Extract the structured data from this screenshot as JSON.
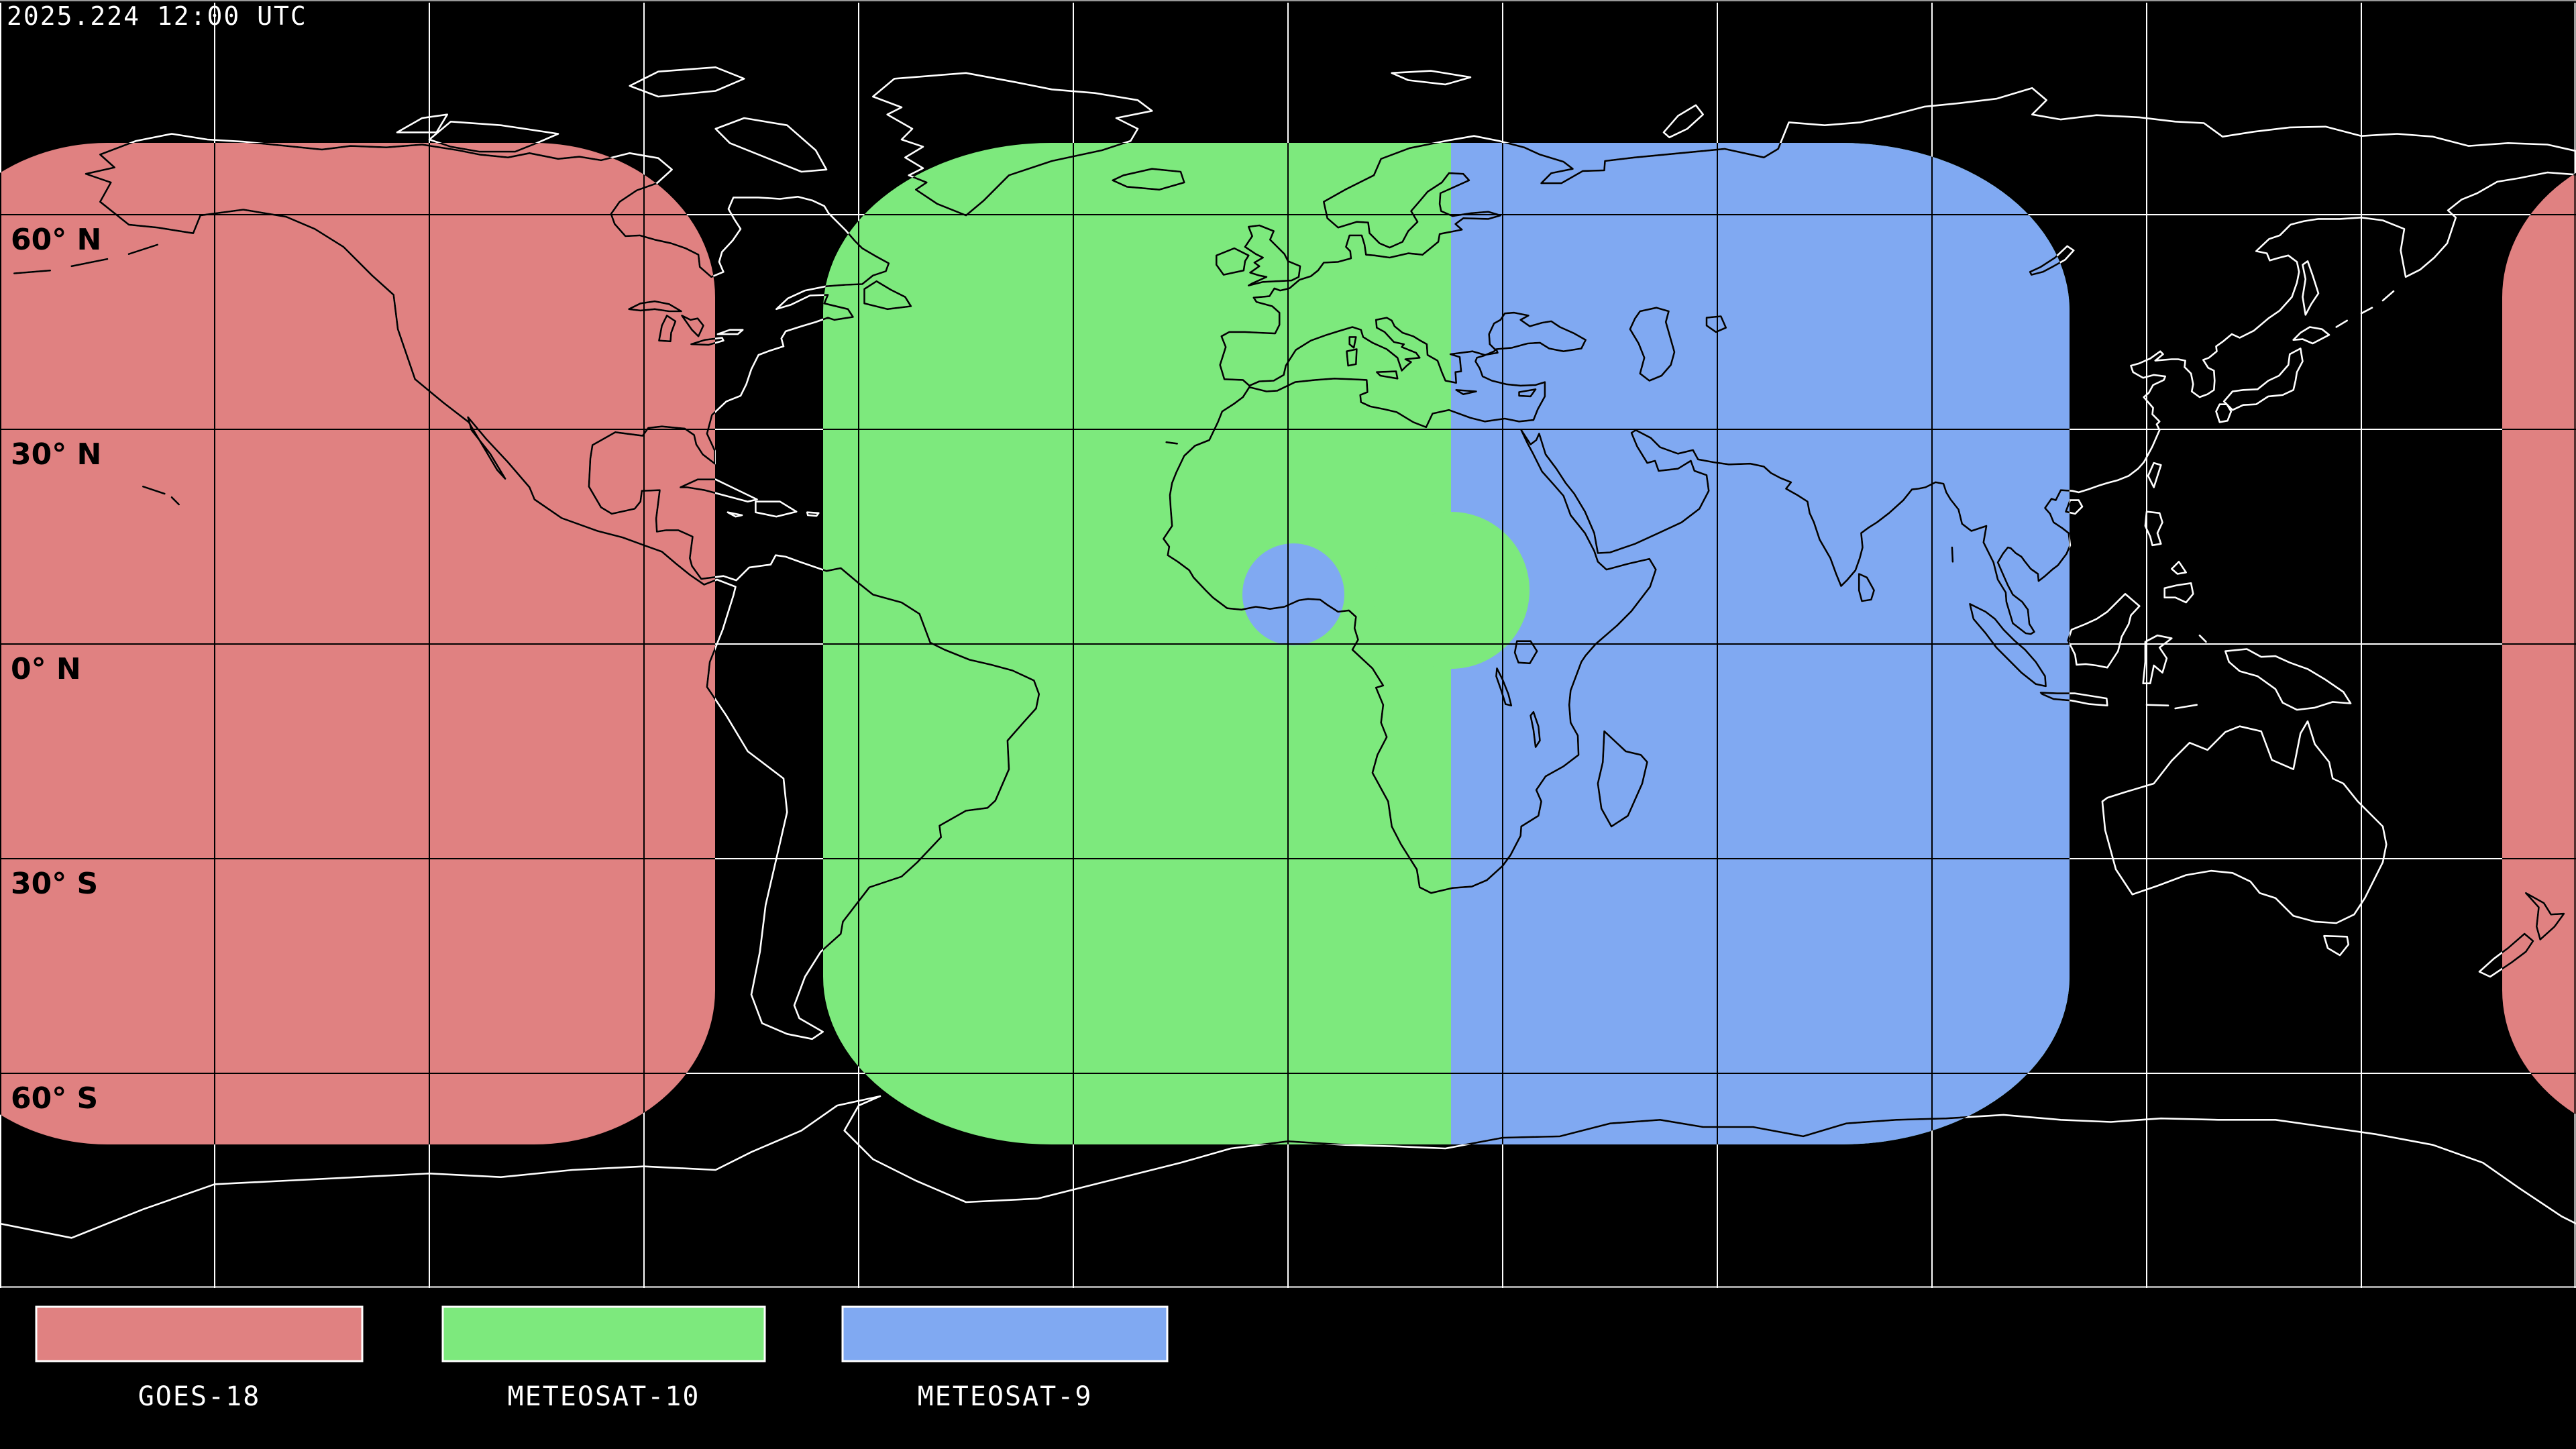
{
  "timestamp": "2025.224 12:00 UTC",
  "map": {
    "latitude_labels": [
      "60° N",
      "30° N",
      "0° N",
      "30° S",
      "60° S"
    ],
    "grid_interval_degrees": 30
  },
  "legend": {
    "items": [
      {
        "label": "GOES-18",
        "color": "#e08181"
      },
      {
        "label": "METEOSAT-10",
        "color": "#7de97d"
      },
      {
        "label": "METEOSAT-9",
        "color": "#80a9f2"
      }
    ]
  },
  "colors": {
    "background": "#000000",
    "goes18": "#e08181",
    "meteosat10": "#7de97d",
    "meteosat9": "#80a9f2",
    "grid_on_black": "#ffffff",
    "grid_on_footprint": "#000000",
    "coastline_on_black": "#ffffff",
    "coastline_on_footprint": "#000000",
    "frame_top": "#999999",
    "timestamp_text": "#ffffff",
    "latitude_label_text": "#000000",
    "legend_text": "#ffffff",
    "legend_swatch_border": "#ffffff"
  }
}
